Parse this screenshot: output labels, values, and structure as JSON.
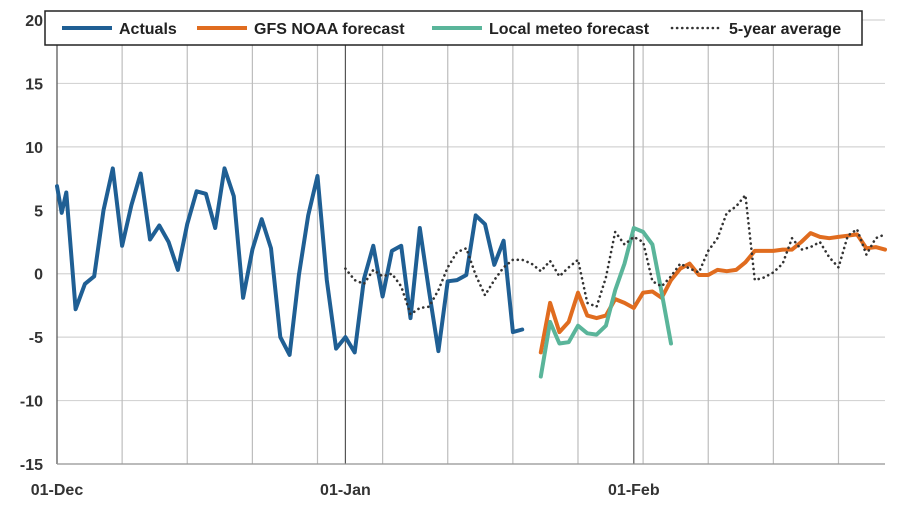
{
  "chart_data": {
    "type": "line",
    "title": "",
    "xlabel": "",
    "ylabel": "",
    "ylim": [
      -15,
      20
    ],
    "y_ticks": [
      "20",
      "15",
      "10",
      "5",
      "0",
      "-5",
      "-10",
      "-15"
    ],
    "y_tick_values": [
      20,
      15,
      10,
      5,
      0,
      -5,
      -10,
      -15
    ],
    "x_range_days": [
      0,
      89
    ],
    "x_tick_labels": [
      {
        "label": "01-Dec",
        "day": 0
      },
      {
        "label": "01-Jan",
        "day": 31
      },
      {
        "label": "01-Feb",
        "day": 62
      }
    ],
    "grid": true,
    "legend_position": "top",
    "series": [
      {
        "name": "Actuals",
        "color": "#1f5f94",
        "style": "solid",
        "x": [
          0,
          0.5,
          1,
          2,
          3,
          4,
          5,
          6,
          7,
          8,
          9,
          10,
          11,
          12,
          13,
          14,
          15,
          16,
          17,
          18,
          19,
          20,
          21,
          22,
          23,
          24,
          25,
          26,
          27,
          28,
          29,
          30,
          31,
          32,
          33,
          34,
          35,
          36,
          37,
          38,
          39,
          40,
          41,
          42,
          43,
          44,
          45,
          46,
          47,
          48,
          49,
          50
        ],
        "values": [
          6.9,
          4.8,
          6.4,
          -2.8,
          -0.8,
          -0.2,
          5.0,
          8.3,
          2.2,
          5.4,
          7.9,
          2.7,
          3.8,
          2.5,
          0.3,
          3.9,
          6.5,
          6.3,
          3.6,
          8.3,
          6.1,
          -1.9,
          1.9,
          4.3,
          2.0,
          -5.0,
          -6.4,
          -0.1,
          4.6,
          7.7,
          -0.5,
          -5.9,
          -5.0,
          -6.2,
          -0.4,
          2.2,
          -1.8,
          1.8,
          2.2,
          -3.5,
          3.6,
          -1.4,
          -6.1,
          -0.6,
          -0.5,
          -0.1,
          4.6,
          3.9,
          0.7,
          2.6,
          -4.6,
          -4.4
        ]
      },
      {
        "name": "GFS NOAA forecast",
        "color": "#e06c1f",
        "style": "solid",
        "x": [
          52,
          53,
          54,
          55,
          56,
          57,
          58,
          59,
          60,
          61,
          62,
          63,
          64,
          65,
          66,
          67,
          68,
          69,
          70,
          71,
          72,
          73,
          74,
          75,
          76,
          77,
          78,
          79,
          80,
          81,
          82,
          83,
          84,
          85,
          86,
          87,
          88,
          89
        ],
        "values": [
          -6.2,
          -2.3,
          -4.6,
          -3.8,
          -1.5,
          -3.3,
          -3.5,
          -3.3,
          -2.0,
          -2.3,
          -2.7,
          -1.5,
          -1.4,
          -1.9,
          -0.5,
          0.4,
          0.8,
          -0.1,
          -0.1,
          0.3,
          0.2,
          0.3,
          0.9,
          1.8,
          1.8,
          1.8,
          1.9,
          1.9,
          2.5,
          3.2,
          2.9,
          2.8,
          2.9,
          3.0,
          3.1,
          2.0,
          2.1,
          1.9
        ]
      },
      {
        "name": "Local meteo forecast",
        "color": "#5ab59a",
        "style": "solid",
        "x": [
          52,
          53,
          54,
          55,
          56,
          57,
          58,
          59,
          60,
          61,
          62,
          63,
          64,
          65,
          66
        ],
        "values": [
          -8.1,
          -3.8,
          -5.5,
          -5.4,
          -4.1,
          -4.7,
          -4.8,
          -4.1,
          -1.3,
          0.8,
          3.6,
          3.3,
          2.3,
          -1.5,
          -5.5
        ]
      },
      {
        "name": "5-year average",
        "color": "#333333",
        "style": "dotted",
        "x": [
          31,
          32,
          33,
          34,
          35,
          36,
          37,
          38,
          39,
          40,
          41,
          42,
          43,
          44,
          45,
          46,
          47,
          48,
          49,
          50,
          51,
          52,
          53,
          54,
          55,
          56,
          57,
          58,
          59,
          60,
          61,
          62,
          63,
          64,
          65,
          66,
          67,
          68,
          69,
          70,
          71,
          72,
          73,
          74,
          75,
          76,
          77,
          78,
          79,
          80,
          81,
          82,
          83,
          84,
          85,
          86,
          87,
          88,
          89
        ],
        "values": [
          0.4,
          -0.5,
          -0.8,
          0.3,
          -0.2,
          0.0,
          -1.0,
          -3.2,
          -2.7,
          -2.6,
          -1.3,
          0.5,
          1.7,
          2.0,
          -0.1,
          -1.7,
          -0.5,
          0.5,
          1.1,
          1.1,
          0.8,
          0.2,
          1.0,
          -0.2,
          0.5,
          1.1,
          -2.3,
          -2.6,
          -0.3,
          3.3,
          2.3,
          2.9,
          2.5,
          -0.6,
          -1.0,
          -0.2,
          0.8,
          0.4,
          0.1,
          1.8,
          2.8,
          4.8,
          5.3,
          6.2,
          -0.5,
          -0.3,
          0.1,
          0.8,
          2.8,
          1.9,
          2.1,
          2.5,
          1.3,
          0.5,
          3.0,
          3.5,
          1.5,
          2.8,
          3.1
        ]
      }
    ]
  }
}
